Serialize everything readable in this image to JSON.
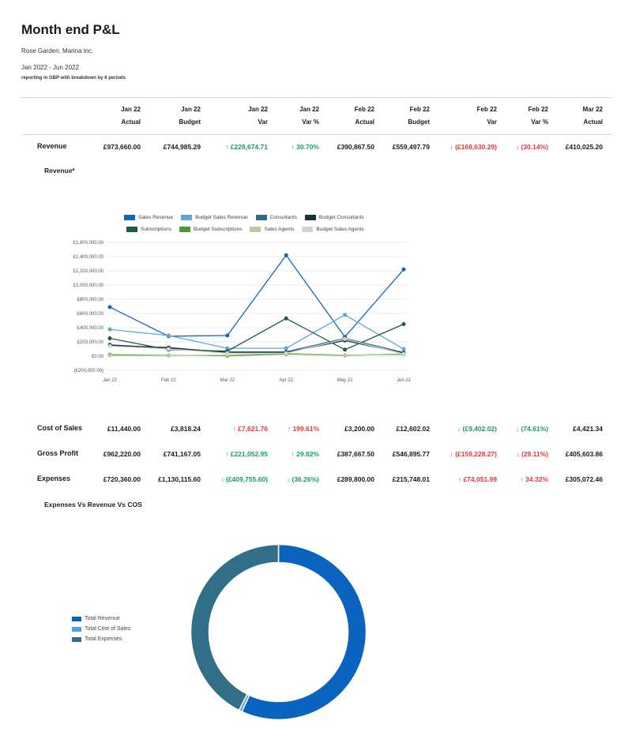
{
  "header": {
    "title": "Month end P&L",
    "company": "Rose Garden, Marina inc.",
    "period": "Jan 2022 - Jun 2022",
    "reporting": "reporting in GBP with breakdown by 6 periods"
  },
  "columns": [
    {
      "month": "Jan 22",
      "type": "Actual"
    },
    {
      "month": "Jan 22",
      "type": "Budget"
    },
    {
      "month": "Jan 22",
      "type": "Var"
    },
    {
      "month": "Jan 22",
      "type": "Var %"
    },
    {
      "month": "Feb 22",
      "type": "Actual"
    },
    {
      "month": "Feb 22",
      "type": "Budget"
    },
    {
      "month": "Feb 22",
      "type": "Var"
    },
    {
      "month": "Feb 22",
      "type": "Var %"
    },
    {
      "month": "Mar 22",
      "type": "Actual"
    }
  ],
  "rows": {
    "revenue": {
      "label": "Revenue",
      "cells": [
        "£973,660.00",
        "£744,985.29",
        "↑ £228,674.71",
        "↑ 30.70%",
        "£390,867.50",
        "£559,497.79",
        "↓ (£168,630.29)",
        "↓ (30.14%)",
        "£410,025.20"
      ],
      "states": [
        "",
        "",
        "pos",
        "pos",
        "",
        "",
        "neg",
        "neg",
        ""
      ]
    },
    "cost_of_sales": {
      "label": "Cost of Sales",
      "cells": [
        "£11,440.00",
        "£3,818.24",
        "↑ £7,621.76",
        "↑ 199.61%",
        "£3,200.00",
        "£12,602.02",
        "↓ (£9,402.02)",
        "↓ (74.61%)",
        "£4,421.34"
      ],
      "states": [
        "",
        "",
        "neg",
        "neg",
        "",
        "",
        "pos",
        "pos",
        ""
      ]
    },
    "gross_profit": {
      "label": "Gross Profit",
      "cells": [
        "£962,220.00",
        "£741,167.05",
        "↑ £221,052.95",
        "↑ 29.82%",
        "£387,667.50",
        "£546,895.77",
        "↓ (£159,228.27)",
        "↓ (29.11%)",
        "£405,603.86"
      ],
      "states": [
        "",
        "",
        "pos",
        "pos",
        "",
        "",
        "neg",
        "neg",
        ""
      ]
    },
    "expenses": {
      "label": "Expenses",
      "cells": [
        "£720,360.00",
        "£1,130,115.60",
        "↓ (£409,755.60)",
        "↓ (36.26%)",
        "£289,800.00",
        "£215,748.01",
        "↑ £74,051.99",
        "↑ 34.32%",
        "£305,072.46"
      ],
      "states": [
        "",
        "",
        "pos",
        "pos",
        "",
        "",
        "neg",
        "neg",
        ""
      ]
    }
  },
  "colors": {
    "positive": "#169c66",
    "negative": "#e3373c"
  },
  "chart_data": [
    {
      "type": "line",
      "title": "Revenue*",
      "x": [
        "Jan 22",
        "Feb 22",
        "Mar 22",
        "Apr 22",
        "May 22",
        "Jun 22"
      ],
      "ylim": [
        -200000,
        1600000
      ],
      "yticks": [
        "£1,600,000.00",
        "£1,400,000.00",
        "£1,200,000.00",
        "£1,000,000.00",
        "£800,000.00",
        "£600,000.00",
        "£400,000.00",
        "£200,000.00",
        "£0.00",
        "(£200,000.00)"
      ],
      "ytick_values": [
        1600000,
        1400000,
        1200000,
        1000000,
        800000,
        600000,
        400000,
        200000,
        0,
        -200000
      ],
      "grid": true,
      "legend_position": "top",
      "series": [
        {
          "name": "Sales Revenue",
          "color": "#1565c0",
          "values": [
            690000,
            280000,
            290000,
            1420000,
            270000,
            1220000
          ]
        },
        {
          "name": "Budget Sales Revenue",
          "color": "#5ba8d8",
          "values": [
            375000,
            290000,
            110000,
            110000,
            580000,
            100000
          ]
        },
        {
          "name": "Consultants",
          "color": "#2e6b85",
          "values": [
            160000,
            110000,
            60000,
            60000,
            250000,
            50000
          ]
        },
        {
          "name": "Budget Consultants",
          "color": "#17323f",
          "values": [
            150000,
            120000,
            50000,
            50000,
            220000,
            40000
          ]
        },
        {
          "name": "Subscriptions",
          "color": "#1e5e3b",
          "values": [
            250000,
            90000,
            70000,
            530000,
            90000,
            450000
          ]
        },
        {
          "name": "Budget Subscriptions",
          "color": "#4c9a2a",
          "values": [
            20000,
            10000,
            5000,
            30000,
            10000,
            30000
          ]
        },
        {
          "name": "Sales Agents",
          "color": "#b7cc9c",
          "values": [
            10000,
            5000,
            15000,
            40000,
            15000,
            20000
          ]
        },
        {
          "name": "Budget Sales Agents",
          "color": "#d3d3d3",
          "values": [
            140000,
            100000,
            40000,
            40000,
            240000,
            30000
          ]
        }
      ]
    },
    {
      "type": "pie",
      "title": "Expenses Vs Revenue Vs COS",
      "legend_position": "left",
      "categories": [
        "Total Revenue",
        "Total Cost of Sales",
        "Total Expenses"
      ],
      "colors": [
        "#0a64bf",
        "#4ea3d6",
        "#306f87"
      ],
      "values": [
        3660000,
        36000,
        2740000
      ]
    }
  ]
}
